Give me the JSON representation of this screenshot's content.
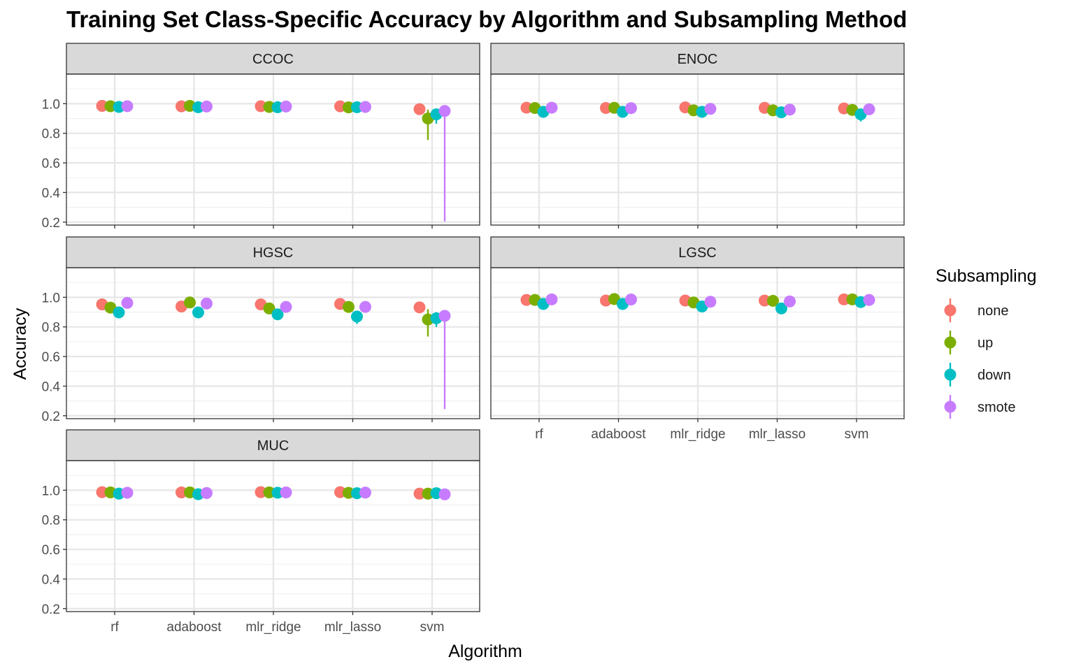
{
  "chart_data": {
    "type": "scatter",
    "title": "Training Set Class-Specific Accuracy by Algorithm and Subsampling Method",
    "xlabel": "Algorithm",
    "ylabel": "Accuracy",
    "categories": [
      "rf",
      "adaboost",
      "mlr_ridge",
      "mlr_lasso",
      "svm"
    ],
    "y_ticks": [
      "0.2",
      "0.4",
      "0.6",
      "0.8",
      "1.0"
    ],
    "ylim": [
      0.18,
      1.2
    ],
    "grid": true,
    "legend": {
      "title": "Subsampling",
      "position": "right",
      "entries": [
        "none",
        "up",
        "down",
        "smote"
      ]
    },
    "series_colors": {
      "none": "#F8766D",
      "up": "#7CAE00",
      "down": "#00BFC4",
      "smote": "#C77CFF"
    },
    "facets": [
      {
        "name": "CCOC",
        "series": [
          {
            "name": "none",
            "values": [
              0.985,
              0.982,
              0.983,
              0.982,
              0.963
            ],
            "err_low": [
              0.985,
              0.982,
              0.983,
              0.982,
              0.963
            ],
            "err_high": [
              0.985,
              0.982,
              0.983,
              0.982,
              0.963
            ]
          },
          {
            "name": "up",
            "values": [
              0.983,
              0.985,
              0.978,
              0.975,
              0.9
            ],
            "err_low": [
              0.983,
              0.985,
              0.978,
              0.975,
              0.755
            ],
            "err_high": [
              0.983,
              0.985,
              0.978,
              0.975,
              0.96
            ]
          },
          {
            "name": "down",
            "values": [
              0.978,
              0.976,
              0.976,
              0.976,
              0.928
            ],
            "err_low": [
              0.978,
              0.976,
              0.976,
              0.976,
              0.865
            ],
            "err_high": [
              0.978,
              0.976,
              0.976,
              0.976,
              0.962
            ]
          },
          {
            "name": "smote",
            "values": [
              0.983,
              0.981,
              0.981,
              0.978,
              0.951
            ],
            "err_low": [
              0.983,
              0.981,
              0.981,
              0.978,
              0.205
            ],
            "err_high": [
              0.983,
              0.981,
              0.981,
              0.978,
              0.96
            ]
          }
        ]
      },
      {
        "name": "ENOC",
        "series": [
          {
            "name": "none",
            "values": [
              0.973,
              0.971,
              0.975,
              0.972,
              0.968
            ],
            "err_low": [
              0.973,
              0.971,
              0.975,
              0.972,
              0.968
            ],
            "err_high": [
              0.973,
              0.971,
              0.975,
              0.972,
              0.968
            ]
          },
          {
            "name": "up",
            "values": [
              0.971,
              0.972,
              0.955,
              0.955,
              0.958
            ],
            "err_low": [
              0.971,
              0.972,
              0.955,
              0.955,
              0.958
            ],
            "err_high": [
              0.971,
              0.972,
              0.955,
              0.955,
              0.958
            ]
          },
          {
            "name": "down",
            "values": [
              0.945,
              0.945,
              0.945,
              0.942,
              0.928
            ],
            "err_low": [
              0.945,
              0.945,
              0.945,
              0.942,
              0.88
            ],
            "err_high": [
              0.945,
              0.945,
              0.945,
              0.942,
              0.955
            ]
          },
          {
            "name": "smote",
            "values": [
              0.973,
              0.97,
              0.965,
              0.96,
              0.962
            ],
            "err_low": [
              0.973,
              0.97,
              0.965,
              0.96,
              0.962
            ],
            "err_high": [
              0.973,
              0.97,
              0.965,
              0.96,
              0.962
            ]
          }
        ]
      },
      {
        "name": "HGSC",
        "series": [
          {
            "name": "none",
            "values": [
              0.952,
              0.938,
              0.952,
              0.955,
              0.932
            ],
            "err_low": [
              0.952,
              0.938,
              0.952,
              0.955,
              0.932
            ],
            "err_high": [
              0.952,
              0.938,
              0.952,
              0.955,
              0.932
            ]
          },
          {
            "name": "up",
            "values": [
              0.93,
              0.965,
              0.925,
              0.935,
              0.85
            ],
            "err_low": [
              0.93,
              0.965,
              0.925,
              0.935,
              0.735
            ],
            "err_high": [
              0.93,
              0.965,
              0.925,
              0.935,
              0.92
            ]
          },
          {
            "name": "down",
            "values": [
              0.898,
              0.898,
              0.885,
              0.87,
              0.858
            ],
            "err_low": [
              0.898,
              0.898,
              0.885,
              0.82,
              0.8
            ],
            "err_high": [
              0.898,
              0.898,
              0.885,
              0.89,
              0.9
            ]
          },
          {
            "name": "smote",
            "values": [
              0.962,
              0.958,
              0.935,
              0.935,
              0.875
            ],
            "err_low": [
              0.962,
              0.958,
              0.935,
              0.935,
              0.245
            ],
            "err_high": [
              0.962,
              0.958,
              0.935,
              0.935,
              0.89
            ]
          }
        ]
      },
      {
        "name": "LGSC",
        "series": [
          {
            "name": "none",
            "values": [
              0.982,
              0.978,
              0.978,
              0.978,
              0.986
            ],
            "err_low": [
              0.982,
              0.978,
              0.978,
              0.978,
              0.986
            ],
            "err_high": [
              0.982,
              0.978,
              0.978,
              0.978,
              0.986
            ]
          },
          {
            "name": "up",
            "values": [
              0.982,
              0.988,
              0.965,
              0.976,
              0.986
            ],
            "err_low": [
              0.982,
              0.988,
              0.965,
              0.976,
              0.986
            ],
            "err_high": [
              0.982,
              0.988,
              0.965,
              0.976,
              0.986
            ]
          },
          {
            "name": "down",
            "values": [
              0.955,
              0.955,
              0.938,
              0.925,
              0.968
            ],
            "err_low": [
              0.955,
              0.955,
              0.938,
              0.925,
              0.935
            ],
            "err_high": [
              0.955,
              0.955,
              0.938,
              0.925,
              0.99
            ]
          },
          {
            "name": "smote",
            "values": [
              0.986,
              0.985,
              0.97,
              0.972,
              0.982
            ],
            "err_low": [
              0.986,
              0.985,
              0.97,
              0.972,
              0.982
            ],
            "err_high": [
              0.986,
              0.985,
              0.97,
              0.972,
              0.982
            ]
          }
        ]
      },
      {
        "name": "MUC",
        "series": [
          {
            "name": "none",
            "values": [
              0.987,
              0.985,
              0.987,
              0.987,
              0.977
            ],
            "err_low": [
              0.987,
              0.985,
              0.987,
              0.987,
              0.977
            ],
            "err_high": [
              0.987,
              0.985,
              0.987,
              0.987,
              0.977
            ]
          },
          {
            "name": "up",
            "values": [
              0.985,
              0.985,
              0.985,
              0.982,
              0.977
            ],
            "err_low": [
              0.985,
              0.985,
              0.985,
              0.982,
              0.977
            ],
            "err_high": [
              0.985,
              0.985,
              0.985,
              0.982,
              0.977
            ]
          },
          {
            "name": "down",
            "values": [
              0.977,
              0.973,
              0.983,
              0.98,
              0.98
            ],
            "err_low": [
              0.977,
              0.973,
              0.983,
              0.98,
              0.98
            ],
            "err_high": [
              0.977,
              0.973,
              0.983,
              0.98,
              0.98
            ]
          },
          {
            "name": "smote",
            "values": [
              0.983,
              0.981,
              0.985,
              0.984,
              0.972
            ],
            "err_low": [
              0.983,
              0.981,
              0.985,
              0.984,
              0.972
            ],
            "err_high": [
              0.983,
              0.981,
              0.985,
              0.984,
              0.972
            ]
          }
        ]
      }
    ]
  }
}
